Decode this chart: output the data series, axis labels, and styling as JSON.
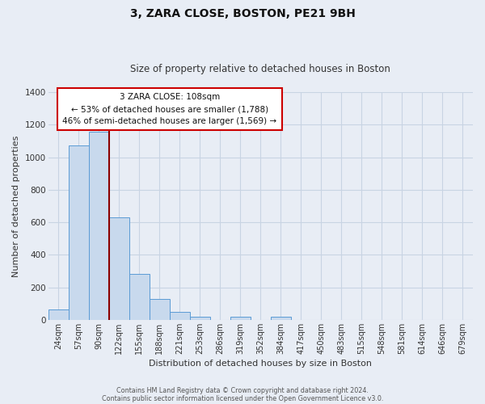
{
  "title": "3, ZARA CLOSE, BOSTON, PE21 9BH",
  "subtitle": "Size of property relative to detached houses in Boston",
  "xlabel": "Distribution of detached houses by size in Boston",
  "ylabel": "Number of detached properties",
  "bar_color": "#c8d9ed",
  "bar_edge_color": "#5b9bd5",
  "grid_color": "#c8d4e3",
  "bg_color": "#e8edf5",
  "categories": [
    "24sqm",
    "57sqm",
    "90sqm",
    "122sqm",
    "155sqm",
    "188sqm",
    "221sqm",
    "253sqm",
    "286sqm",
    "319sqm",
    "352sqm",
    "384sqm",
    "417sqm",
    "450sqm",
    "483sqm",
    "515sqm",
    "548sqm",
    "581sqm",
    "614sqm",
    "646sqm",
    "679sqm"
  ],
  "values": [
    65,
    1070,
    1155,
    630,
    285,
    130,
    48,
    20,
    0,
    20,
    0,
    20,
    0,
    0,
    0,
    0,
    0,
    0,
    0,
    0,
    0
  ],
  "ylim": [
    0,
    1400
  ],
  "yticks": [
    0,
    200,
    400,
    600,
    800,
    1000,
    1200,
    1400
  ],
  "property_line_color": "#8b0000",
  "annotation_title": "3 ZARA CLOSE: 108sqm",
  "annotation_line1": "← 53% of detached houses are smaller (1,788)",
  "annotation_line2": "46% of semi-detached houses are larger (1,569) →",
  "annotation_box_color": "#ffffff",
  "annotation_box_edge": "#cc0000",
  "footer_line1": "Contains HM Land Registry data © Crown copyright and database right 2024.",
  "footer_line2": "Contains public sector information licensed under the Open Government Licence v3.0."
}
